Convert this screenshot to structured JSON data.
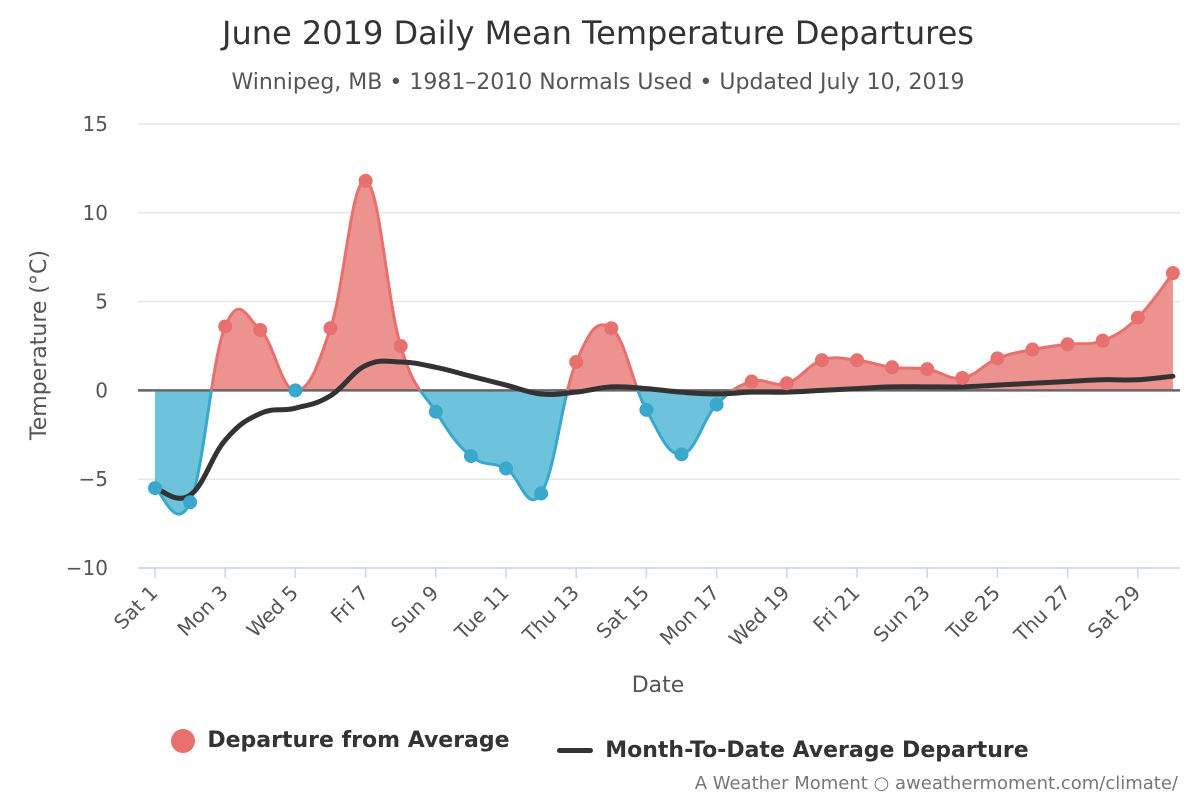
{
  "title": "June 2019 Daily Mean Temperature Departures",
  "subtitle": "Winnipeg, MB • 1981–2010 Normals Used • Updated July 10, 2019",
  "credits": "A Weather Moment ○ aweathermoment.com/climate/",
  "colors": {
    "positive": "#e8706f",
    "positive_fill": "#ec928f",
    "negative": "#3aa8cc",
    "negative_fill": "#6cc3db",
    "mtd_line": "#333333",
    "grid": "#e6e6e6"
  },
  "chart_data": {
    "type": "area",
    "xlabel": "Date",
    "ylabel": "Temperature (°C)",
    "ylim": [
      -10,
      15
    ],
    "yticks": [
      "−10",
      "−5",
      "0",
      "5",
      "10",
      "15"
    ],
    "x_tick_labels": [
      "Sat 1",
      "Mon 3",
      "Wed 5",
      "Fri 7",
      "Sun 9",
      "Tue 11",
      "Thu 13",
      "Sat 15",
      "Mon 17",
      "Wed 19",
      "Fri 21",
      "Sun 23",
      "Tue 25",
      "Thu 27",
      "Sat 29"
    ],
    "x_tick_days": [
      1,
      3,
      5,
      7,
      9,
      11,
      13,
      15,
      17,
      19,
      21,
      23,
      25,
      27,
      29
    ],
    "grid": true,
    "legend_placement": "bottom",
    "series": [
      {
        "name": "Departure from Average",
        "type": "area",
        "x": [
          1,
          2,
          3,
          4,
          5,
          6,
          7,
          8,
          9,
          10,
          11,
          12,
          13,
          14,
          15,
          16,
          17,
          18,
          19,
          20,
          21,
          22,
          23,
          24,
          25,
          26,
          27,
          28,
          29,
          30
        ],
        "values": [
          -5.5,
          -6.3,
          3.6,
          3.4,
          0.0,
          3.5,
          11.8,
          2.5,
          -1.2,
          -3.7,
          -4.4,
          -5.8,
          1.6,
          3.5,
          -1.1,
          -3.6,
          -0.8,
          0.5,
          0.4,
          1.7,
          1.7,
          1.3,
          1.2,
          0.7,
          1.8,
          2.3,
          2.6,
          2.8,
          4.1,
          6.6
        ]
      },
      {
        "name": "Month-To-Date Average Departure",
        "type": "line",
        "x": [
          1,
          2,
          3,
          4,
          5,
          6,
          7,
          8,
          9,
          10,
          11,
          12,
          13,
          14,
          15,
          16,
          17,
          18,
          19,
          20,
          21,
          22,
          23,
          24,
          25,
          26,
          27,
          28,
          29,
          30
        ],
        "values": [
          -5.5,
          -5.9,
          -2.8,
          -1.3,
          -1.0,
          -0.3,
          1.4,
          1.6,
          1.3,
          0.8,
          0.3,
          -0.2,
          -0.1,
          0.2,
          0.1,
          -0.1,
          -0.2,
          -0.1,
          -0.1,
          0.0,
          0.1,
          0.2,
          0.2,
          0.2,
          0.3,
          0.4,
          0.5,
          0.6,
          0.6,
          0.8
        ]
      }
    ]
  }
}
